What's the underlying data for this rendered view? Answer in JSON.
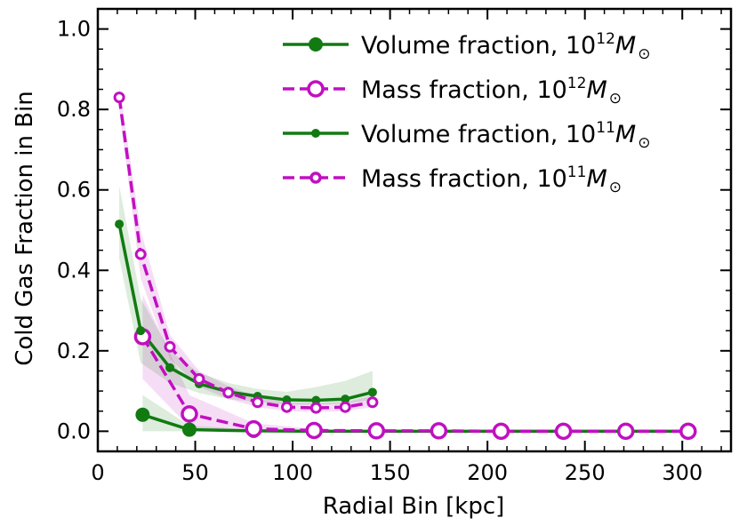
{
  "chart_data": {
    "type": "line",
    "xlabel": "Radial Bin [kpc]",
    "ylabel": "Cold Gas Fraction in Bin",
    "xlim": [
      0,
      325
    ],
    "ylim": [
      -0.05,
      1.05
    ],
    "xticks": [
      0,
      50,
      100,
      150,
      200,
      250,
      300
    ],
    "yticks": [
      0.0,
      0.2,
      0.4,
      0.6,
      0.8,
      1.0
    ],
    "xtick_labels": [
      "0",
      "50",
      "100",
      "150",
      "200",
      "250",
      "300"
    ],
    "ytick_labels": [
      "0.0",
      "0.2",
      "0.4",
      "0.6",
      "0.8",
      "1.0"
    ],
    "grid": false,
    "legend_position": "top-right",
    "colors": {
      "green": "#117a11",
      "magenta": "#c010c0"
    },
    "series": [
      {
        "legend": {
          "main": "Volume fraction, 10",
          "exp": "12",
          "sym": "M",
          "sub": "⊙"
        },
        "color": "#117a11",
        "style": "solid",
        "marker": "filled",
        "marker_size": "large",
        "x": [
          23,
          47,
          80,
          111,
          143,
          175,
          207,
          239,
          271,
          303
        ],
        "y": [
          0.041,
          0.004,
          0.001,
          0.0,
          0.0,
          0.0,
          0.0,
          0.0,
          0.0,
          0.0
        ],
        "band_lower": [
          0.0,
          0.0,
          0.0,
          0.0,
          0.0,
          0.0,
          0.0,
          0.0,
          0.0,
          0.0
        ],
        "band_upper": [
          0.09,
          0.014,
          0.004,
          0.001,
          0.0,
          0.0,
          0.0,
          0.0,
          0.0,
          0.0
        ]
      },
      {
        "legend": {
          "main": "Mass fraction, 10",
          "exp": "12",
          "sym": "M",
          "sub": "⊙"
        },
        "color": "#c010c0",
        "style": "dashed",
        "marker": "open",
        "marker_size": "large",
        "x": [
          23,
          47,
          80,
          111,
          143,
          175,
          207,
          239,
          271,
          303
        ],
        "y": [
          0.235,
          0.043,
          0.006,
          0.002,
          0.001,
          0.001,
          0.0,
          0.0,
          0.0,
          0.0
        ],
        "band_lower": [
          0.13,
          0.01,
          0.0,
          0.0,
          0.0,
          0.0,
          0.0,
          0.0,
          0.0,
          0.0
        ],
        "band_upper": [
          0.34,
          0.09,
          0.02,
          0.006,
          0.003,
          0.002,
          0.0,
          0.0,
          0.0,
          0.0
        ]
      },
      {
        "legend": {
          "main": "Volume fraction, 10",
          "exp": "11",
          "sym": "M",
          "sub": "⊙"
        },
        "color": "#117a11",
        "style": "solid",
        "marker": "filled",
        "marker_size": "small",
        "x": [
          11,
          22,
          37,
          52,
          67,
          82,
          97,
          112,
          127,
          141
        ],
        "y": [
          0.515,
          0.25,
          0.158,
          0.118,
          0.098,
          0.087,
          0.078,
          0.077,
          0.08,
          0.097
        ],
        "band_lower": [
          0.43,
          0.17,
          0.12,
          0.095,
          0.08,
          0.072,
          0.066,
          0.066,
          0.068,
          0.078
        ],
        "band_upper": [
          0.61,
          0.33,
          0.2,
          0.145,
          0.12,
          0.105,
          0.098,
          0.11,
          0.125,
          0.15
        ]
      },
      {
        "legend": {
          "main": "Mass fraction, 10",
          "exp": "11",
          "sym": "M",
          "sub": "⊙"
        },
        "color": "#c010c0",
        "style": "dashed",
        "marker": "open",
        "marker_size": "small",
        "x": [
          11,
          22,
          37,
          52,
          67,
          82,
          97,
          112,
          127,
          141
        ],
        "y": [
          0.83,
          0.44,
          0.21,
          0.13,
          0.096,
          0.072,
          0.06,
          0.058,
          0.06,
          0.072
        ],
        "band_lower": [
          0.8,
          0.38,
          0.18,
          0.11,
          0.08,
          0.06,
          0.05,
          0.048,
          0.05,
          0.06
        ],
        "band_upper": [
          0.86,
          0.5,
          0.24,
          0.15,
          0.112,
          0.085,
          0.072,
          0.07,
          0.072,
          0.088
        ]
      }
    ]
  }
}
